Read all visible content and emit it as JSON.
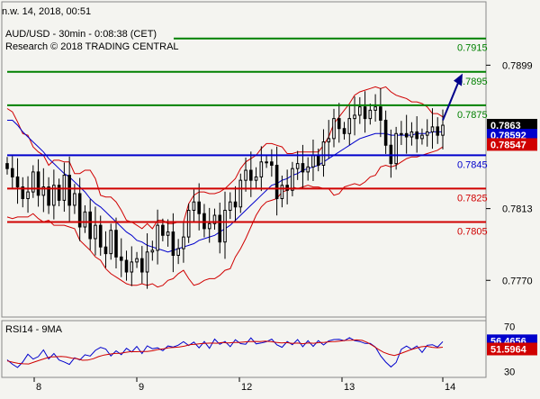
{
  "header": {
    "date_line": "n.w. 14, 2018, 00:51",
    "title": "AUD/USD - 30min - 0:08:38 (CET)",
    "subtitle": "Research © 2018 TRADING CENTRAL"
  },
  "colors": {
    "background": "#f4f4f0",
    "resistance": "#008000",
    "support": "#d00000",
    "pivot": "#0000cc",
    "bollinger": "#d00000",
    "moving_average": "#0000cc",
    "candles": "#000000",
    "rsi_line": "#0000cc",
    "rsi_ma": "#d00000",
    "arrow": "#00008b",
    "last_price_badge": "#000000",
    "ma_badge": "#0000cc",
    "ma2_badge": "#d00000"
  },
  "chart_data": [
    {
      "type": "candlestick",
      "title": "AUD/USD - 30min - 0:08:38 (CET)",
      "ylim": [
        0.7748,
        0.7937
      ],
      "x_ticks": [
        "8",
        "9",
        "12",
        "13",
        "14"
      ],
      "y_ticks": [
        "0.7899",
        "0.7813",
        "0.7770"
      ],
      "levels": [
        {
          "label": "0.7915",
          "value": 0.7915,
          "kind": "resistance"
        },
        {
          "label": "0.7895",
          "value": 0.7895,
          "kind": "resistance"
        },
        {
          "label": "0.7875",
          "value": 0.7875,
          "kind": "resistance"
        },
        {
          "label": "0.7845",
          "value": 0.7845,
          "kind": "pivot"
        },
        {
          "label": "0.7825",
          "value": 0.7825,
          "kind": "support"
        },
        {
          "label": "0.7805",
          "value": 0.7805,
          "kind": "support"
        }
      ],
      "badges": [
        {
          "label": "0.7863",
          "kind": "last_price"
        },
        {
          "label": "0.78592",
          "kind": "moving_average"
        },
        {
          "label": "0.78547",
          "kind": "moving_average_2"
        }
      ],
      "projection": {
        "from": 0.7866,
        "to": 0.7894
      },
      "close": [
        0.7837,
        0.7832,
        0.7826,
        0.7819,
        0.7823,
        0.7835,
        0.7821,
        0.7826,
        0.7815,
        0.7827,
        0.7818,
        0.7833,
        0.7815,
        0.7822,
        0.7802,
        0.7811,
        0.7795,
        0.7803,
        0.779,
        0.7786,
        0.78,
        0.7784,
        0.7782,
        0.7775,
        0.7781,
        0.7783,
        0.7775,
        0.7787,
        0.7788,
        0.7803,
        0.7797,
        0.7799,
        0.7785,
        0.7789,
        0.7796,
        0.7812,
        0.7817,
        0.781,
        0.7801,
        0.7804,
        0.7809,
        0.7793,
        0.7812,
        0.7817,
        0.7814,
        0.783,
        0.7836,
        0.783,
        0.7832,
        0.7841,
        0.7841,
        0.7839,
        0.7819,
        0.7827,
        0.7824,
        0.7837,
        0.784,
        0.7835,
        0.7838,
        0.7845,
        0.7839,
        0.7853,
        0.7855,
        0.7867,
        0.7861,
        0.7858,
        0.7867,
        0.7869,
        0.7874,
        0.7867,
        0.7872,
        0.7874,
        0.7866,
        0.7851,
        0.784,
        0.7858,
        0.7858,
        0.7856,
        0.7859,
        0.7855,
        0.7857,
        0.7859,
        0.7862,
        0.7857,
        0.7863
      ],
      "bb_upper": [
        0.7873,
        0.7871,
        0.7865,
        0.7858,
        0.7857,
        0.785,
        0.7847,
        0.7845,
        0.7839,
        0.7842,
        0.7842,
        0.7841,
        0.7841,
        0.7834,
        0.7834,
        0.7836,
        0.7836,
        0.7831,
        0.7821,
        0.782,
        0.782,
        0.7817,
        0.7812,
        0.7806,
        0.7805,
        0.7803,
        0.7801,
        0.7804,
        0.7801,
        0.7806,
        0.7806,
        0.7804,
        0.7804,
        0.7805,
        0.7805,
        0.7816,
        0.7821,
        0.7823,
        0.7823,
        0.7822,
        0.7822,
        0.7823,
        0.7825,
        0.7828,
        0.7831,
        0.7837,
        0.7841,
        0.7843,
        0.7845,
        0.7849,
        0.7852,
        0.7852,
        0.7851,
        0.785,
        0.7846,
        0.7846,
        0.7847,
        0.7847,
        0.7847,
        0.7847,
        0.7847,
        0.7851,
        0.7856,
        0.7864,
        0.7868,
        0.7872,
        0.7876,
        0.7881,
        0.7883,
        0.7884,
        0.7885,
        0.7886,
        0.7885,
        0.7886,
        0.7883,
        0.7881,
        0.788,
        0.7879,
        0.7877,
        0.7877,
        0.7876,
        0.7874,
        0.787,
        0.787,
        0.7868
      ],
      "bb_lower": [
        0.7808,
        0.7807,
        0.7808,
        0.7808,
        0.7808,
        0.781,
        0.7807,
        0.7805,
        0.7806,
        0.7803,
        0.7803,
        0.7803,
        0.7802,
        0.7801,
        0.7794,
        0.7791,
        0.7788,
        0.7784,
        0.7782,
        0.7777,
        0.7774,
        0.7772,
        0.777,
        0.7768,
        0.7767,
        0.7767,
        0.7768,
        0.7767,
        0.7768,
        0.7766,
        0.7767,
        0.777,
        0.7771,
        0.7774,
        0.7776,
        0.7771,
        0.7767,
        0.7768,
        0.777,
        0.7771,
        0.7771,
        0.7773,
        0.7776,
        0.7777,
        0.7784,
        0.7789,
        0.7795,
        0.7802,
        0.7809,
        0.7814,
        0.7817,
        0.7818,
        0.7819,
        0.7823,
        0.7824,
        0.7826,
        0.7825,
        0.7826,
        0.7827,
        0.7826,
        0.7826,
        0.7825,
        0.7825,
        0.7821,
        0.7822,
        0.7826,
        0.7827,
        0.7828,
        0.7827,
        0.7829,
        0.7832,
        0.7833,
        0.7838,
        0.7839,
        0.7838,
        0.7839,
        0.7841,
        0.7843,
        0.7844,
        0.7844,
        0.7845,
        0.7846,
        0.7847,
        0.7848,
        0.785
      ],
      "ma": [
        0.7866,
        0.7866,
        0.7863,
        0.7859,
        0.7856,
        0.7853,
        0.785,
        0.7847,
        0.7843,
        0.784,
        0.7837,
        0.7834,
        0.7832,
        0.7829,
        0.7826,
        0.7823,
        0.7819,
        0.7816,
        0.7814,
        0.7811,
        0.7808,
        0.7805,
        0.7802,
        0.7799,
        0.7797,
        0.7794,
        0.7793,
        0.7791,
        0.779,
        0.7789,
        0.7788,
        0.7787,
        0.7788,
        0.7789,
        0.779,
        0.7791,
        0.7792,
        0.7794,
        0.7795,
        0.7796,
        0.7797,
        0.7799,
        0.7801,
        0.7803,
        0.7806,
        0.7809,
        0.7812,
        0.7815,
        0.7818,
        0.7821,
        0.7824,
        0.7827,
        0.7828,
        0.783,
        0.7831,
        0.7833,
        0.7834,
        0.7836,
        0.7837,
        0.7838,
        0.7839,
        0.7841,
        0.7843,
        0.7845,
        0.7847,
        0.7849,
        0.7851,
        0.7853,
        0.7855,
        0.7856,
        0.7857,
        0.7858,
        0.7858,
        0.7858,
        0.7857,
        0.7857,
        0.7857,
        0.7857,
        0.7857,
        0.7858,
        0.7858,
        0.7858,
        0.7859,
        0.7859,
        0.7859
      ]
    },
    {
      "type": "line",
      "title": "RSI14 - 9MA",
      "ylim": [
        25,
        75
      ],
      "y_ticks": [
        "70",
        "30"
      ],
      "badges": [
        {
          "label": "56.4656",
          "kind": "rsi"
        },
        {
          "label": "51.5964",
          "kind": "rsi_ma"
        }
      ],
      "series": [
        {
          "name": "RSI14",
          "values": [
            40.5,
            36.6,
            33.7,
            38.6,
            45.4,
            41.1,
            43.3,
            49.2,
            41.2,
            46.0,
            40.3,
            38.6,
            36.4,
            42.3,
            40.3,
            44.9,
            43.8,
            48.8,
            51.4,
            50.0,
            43.9,
            48.4,
            45.0,
            50.6,
            47.4,
            52.3,
            46.0,
            52.8,
            50.2,
            51.0,
            48.5,
            52.7,
            51.7,
            53.4,
            56.5,
            53.1,
            56.1,
            51.0,
            56.6,
            50.6,
            58.7,
            54.1,
            56.7,
            52.1,
            58.2,
            54.8,
            54.2,
            59.8,
            54.5,
            55.3,
            56.4,
            58.7,
            53.7,
            51.5,
            56.6,
            53.8,
            58.3,
            52.1,
            57.3,
            52.3,
            57.4,
            53.6,
            57.2,
            58.3,
            58.5,
            57.3,
            60.0,
            57.5,
            56.6,
            54.9,
            55.0,
            51.7,
            44.0,
            38.5,
            34.2,
            38.1,
            49.8,
            52.6,
            49.8,
            52.7,
            47.0,
            53.3,
            53.8,
            51.7,
            56.5
          ]
        },
        {
          "name": "9MA",
          "values": [
            39.5,
            38.4,
            37.4,
            37.0,
            36.8,
            38.5,
            40.1,
            41.6,
            43.0,
            43.2,
            43.4,
            43.0,
            42.0,
            41.4,
            40.1,
            40.2,
            41.4,
            43.3,
            44.7,
            45.4,
            46.1,
            46.3,
            47.1,
            47.7,
            47.6,
            47.8,
            47.8,
            48.4,
            49.5,
            50.1,
            51.1,
            51.4,
            51.8,
            52.6,
            53.9,
            54.1,
            54.8,
            55.1,
            55.2,
            55.1,
            55.8,
            55.3,
            55.8,
            55.7,
            56.2,
            56.5,
            56.7,
            56.6,
            57.0,
            56.5,
            55.9,
            55.4,
            55.6,
            55.0,
            55.2,
            54.7,
            55.3,
            55.1,
            55.6,
            55.9,
            56.4,
            56.6,
            57.1,
            57.6,
            57.7,
            58.0,
            57.6,
            55.7,
            52.9,
            49.8,
            47.1,
            45.3,
            44.3,
            45.7,
            47.5,
            49.3,
            50.7,
            52.0,
            52.5,
            51.5,
            51.1,
            51.6
          ]
        }
      ]
    }
  ]
}
